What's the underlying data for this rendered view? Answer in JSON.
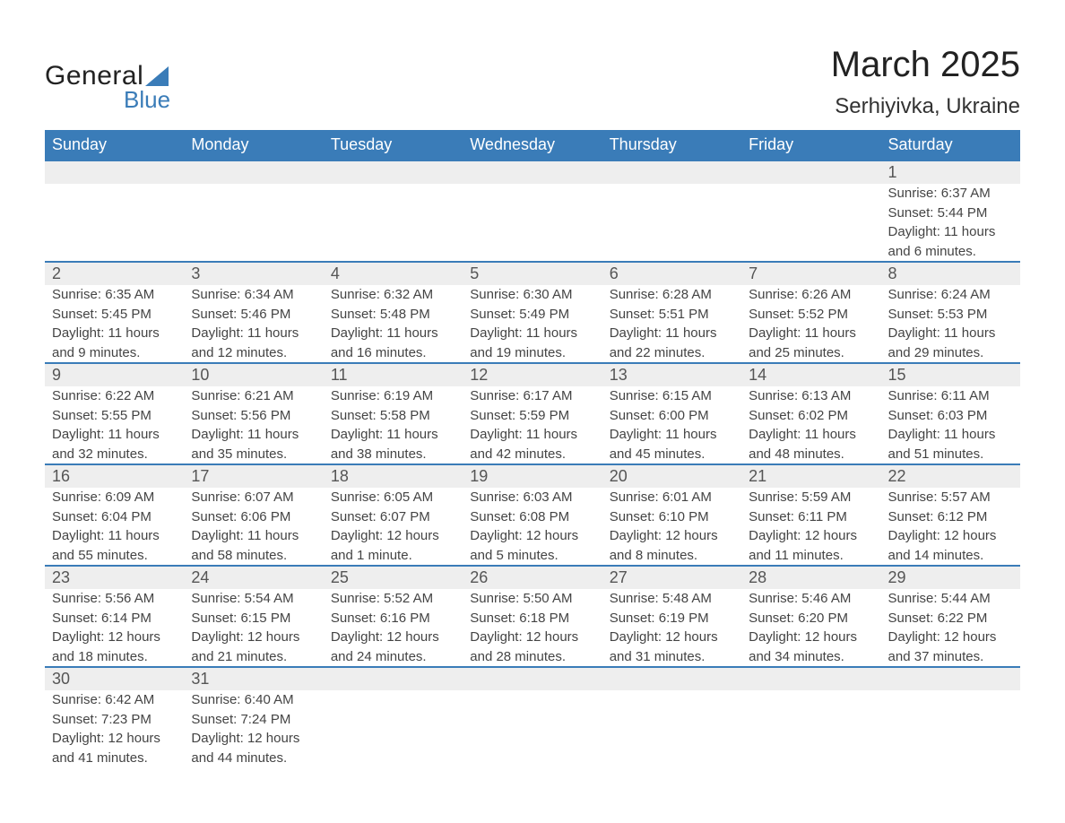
{
  "brand": {
    "word1": "General",
    "word2": "Blue"
  },
  "title": "March 2025",
  "location": "Serhiyivka, Ukraine",
  "colors": {
    "header_bg": "#3a7cb8",
    "header_text": "#ffffff",
    "daynum_bg": "#eeeeee",
    "row_border": "#3a7cb8",
    "body_text": "#444444",
    "page_bg": "#ffffff"
  },
  "day_names": [
    "Sunday",
    "Monday",
    "Tuesday",
    "Wednesday",
    "Thursday",
    "Friday",
    "Saturday"
  ],
  "weeks": [
    {
      "nums": [
        "",
        "",
        "",
        "",
        "",
        "",
        "1"
      ],
      "sunrise": [
        "",
        "",
        "",
        "",
        "",
        "",
        "Sunrise: 6:37 AM"
      ],
      "sunset": [
        "",
        "",
        "",
        "",
        "",
        "",
        "Sunset: 5:44 PM"
      ],
      "day1": [
        "",
        "",
        "",
        "",
        "",
        "",
        "Daylight: 11 hours"
      ],
      "day2": [
        "",
        "",
        "",
        "",
        "",
        "",
        "and 6 minutes."
      ]
    },
    {
      "nums": [
        "2",
        "3",
        "4",
        "5",
        "6",
        "7",
        "8"
      ],
      "sunrise": [
        "Sunrise: 6:35 AM",
        "Sunrise: 6:34 AM",
        "Sunrise: 6:32 AM",
        "Sunrise: 6:30 AM",
        "Sunrise: 6:28 AM",
        "Sunrise: 6:26 AM",
        "Sunrise: 6:24 AM"
      ],
      "sunset": [
        "Sunset: 5:45 PM",
        "Sunset: 5:46 PM",
        "Sunset: 5:48 PM",
        "Sunset: 5:49 PM",
        "Sunset: 5:51 PM",
        "Sunset: 5:52 PM",
        "Sunset: 5:53 PM"
      ],
      "day1": [
        "Daylight: 11 hours",
        "Daylight: 11 hours",
        "Daylight: 11 hours",
        "Daylight: 11 hours",
        "Daylight: 11 hours",
        "Daylight: 11 hours",
        "Daylight: 11 hours"
      ],
      "day2": [
        "and 9 minutes.",
        "and 12 minutes.",
        "and 16 minutes.",
        "and 19 minutes.",
        "and 22 minutes.",
        "and 25 minutes.",
        "and 29 minutes."
      ]
    },
    {
      "nums": [
        "9",
        "10",
        "11",
        "12",
        "13",
        "14",
        "15"
      ],
      "sunrise": [
        "Sunrise: 6:22 AM",
        "Sunrise: 6:21 AM",
        "Sunrise: 6:19 AM",
        "Sunrise: 6:17 AM",
        "Sunrise: 6:15 AM",
        "Sunrise: 6:13 AM",
        "Sunrise: 6:11 AM"
      ],
      "sunset": [
        "Sunset: 5:55 PM",
        "Sunset: 5:56 PM",
        "Sunset: 5:58 PM",
        "Sunset: 5:59 PM",
        "Sunset: 6:00 PM",
        "Sunset: 6:02 PM",
        "Sunset: 6:03 PM"
      ],
      "day1": [
        "Daylight: 11 hours",
        "Daylight: 11 hours",
        "Daylight: 11 hours",
        "Daylight: 11 hours",
        "Daylight: 11 hours",
        "Daylight: 11 hours",
        "Daylight: 11 hours"
      ],
      "day2": [
        "and 32 minutes.",
        "and 35 minutes.",
        "and 38 minutes.",
        "and 42 minutes.",
        "and 45 minutes.",
        "and 48 minutes.",
        "and 51 minutes."
      ]
    },
    {
      "nums": [
        "16",
        "17",
        "18",
        "19",
        "20",
        "21",
        "22"
      ],
      "sunrise": [
        "Sunrise: 6:09 AM",
        "Sunrise: 6:07 AM",
        "Sunrise: 6:05 AM",
        "Sunrise: 6:03 AM",
        "Sunrise: 6:01 AM",
        "Sunrise: 5:59 AM",
        "Sunrise: 5:57 AM"
      ],
      "sunset": [
        "Sunset: 6:04 PM",
        "Sunset: 6:06 PM",
        "Sunset: 6:07 PM",
        "Sunset: 6:08 PM",
        "Sunset: 6:10 PM",
        "Sunset: 6:11 PM",
        "Sunset: 6:12 PM"
      ],
      "day1": [
        "Daylight: 11 hours",
        "Daylight: 11 hours",
        "Daylight: 12 hours",
        "Daylight: 12 hours",
        "Daylight: 12 hours",
        "Daylight: 12 hours",
        "Daylight: 12 hours"
      ],
      "day2": [
        "and 55 minutes.",
        "and 58 minutes.",
        "and 1 minute.",
        "and 5 minutes.",
        "and 8 minutes.",
        "and 11 minutes.",
        "and 14 minutes."
      ]
    },
    {
      "nums": [
        "23",
        "24",
        "25",
        "26",
        "27",
        "28",
        "29"
      ],
      "sunrise": [
        "Sunrise: 5:56 AM",
        "Sunrise: 5:54 AM",
        "Sunrise: 5:52 AM",
        "Sunrise: 5:50 AM",
        "Sunrise: 5:48 AM",
        "Sunrise: 5:46 AM",
        "Sunrise: 5:44 AM"
      ],
      "sunset": [
        "Sunset: 6:14 PM",
        "Sunset: 6:15 PM",
        "Sunset: 6:16 PM",
        "Sunset: 6:18 PM",
        "Sunset: 6:19 PM",
        "Sunset: 6:20 PM",
        "Sunset: 6:22 PM"
      ],
      "day1": [
        "Daylight: 12 hours",
        "Daylight: 12 hours",
        "Daylight: 12 hours",
        "Daylight: 12 hours",
        "Daylight: 12 hours",
        "Daylight: 12 hours",
        "Daylight: 12 hours"
      ],
      "day2": [
        "and 18 minutes.",
        "and 21 minutes.",
        "and 24 minutes.",
        "and 28 minutes.",
        "and 31 minutes.",
        "and 34 minutes.",
        "and 37 minutes."
      ]
    },
    {
      "nums": [
        "30",
        "31",
        "",
        "",
        "",
        "",
        ""
      ],
      "sunrise": [
        "Sunrise: 6:42 AM",
        "Sunrise: 6:40 AM",
        "",
        "",
        "",
        "",
        ""
      ],
      "sunset": [
        "Sunset: 7:23 PM",
        "Sunset: 7:24 PM",
        "",
        "",
        "",
        "",
        ""
      ],
      "day1": [
        "Daylight: 12 hours",
        "Daylight: 12 hours",
        "",
        "",
        "",
        "",
        ""
      ],
      "day2": [
        "and 41 minutes.",
        "and 44 minutes.",
        "",
        "",
        "",
        "",
        ""
      ]
    }
  ]
}
